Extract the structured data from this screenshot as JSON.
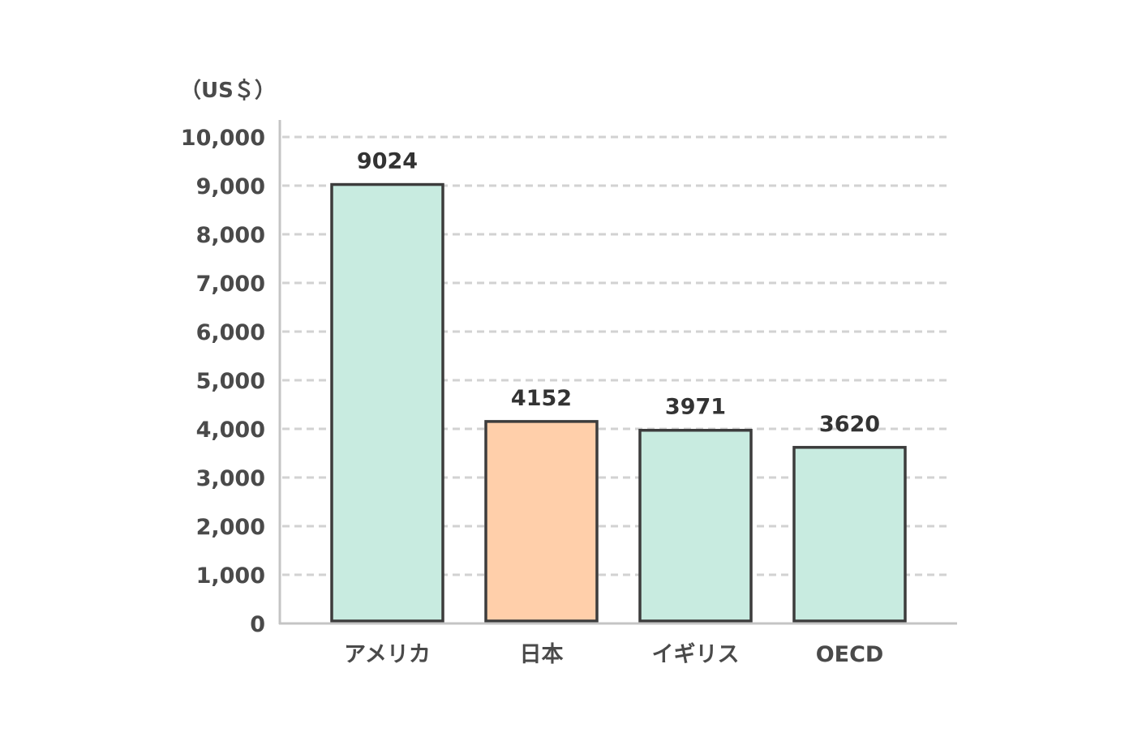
{
  "chart_data": {
    "type": "bar",
    "unit_label": "（US＄）",
    "categories": [
      "アメリカ",
      "日本",
      "イギリス",
      "OECD"
    ],
    "values": [
      9024,
      4152,
      3971,
      3620
    ],
    "value_labels": [
      "9024",
      "4152",
      "3971",
      "3620"
    ],
    "ylim": [
      0,
      10000
    ],
    "y_ticks": [
      0,
      1000,
      2000,
      3000,
      4000,
      5000,
      6000,
      7000,
      8000,
      9000,
      10000
    ],
    "y_tick_labels": [
      "0",
      "1,000",
      "2,000",
      "3,000",
      "4,000",
      "5,000",
      "6,000",
      "7,000",
      "8,000",
      "9,000",
      "10,000"
    ],
    "grid": true,
    "colors": {
      "default_bar": "#c8ebe0",
      "highlight_bar": "#ffcfaa",
      "bar_stroke": "#3c3c3c"
    },
    "highlight_category": "日本"
  }
}
